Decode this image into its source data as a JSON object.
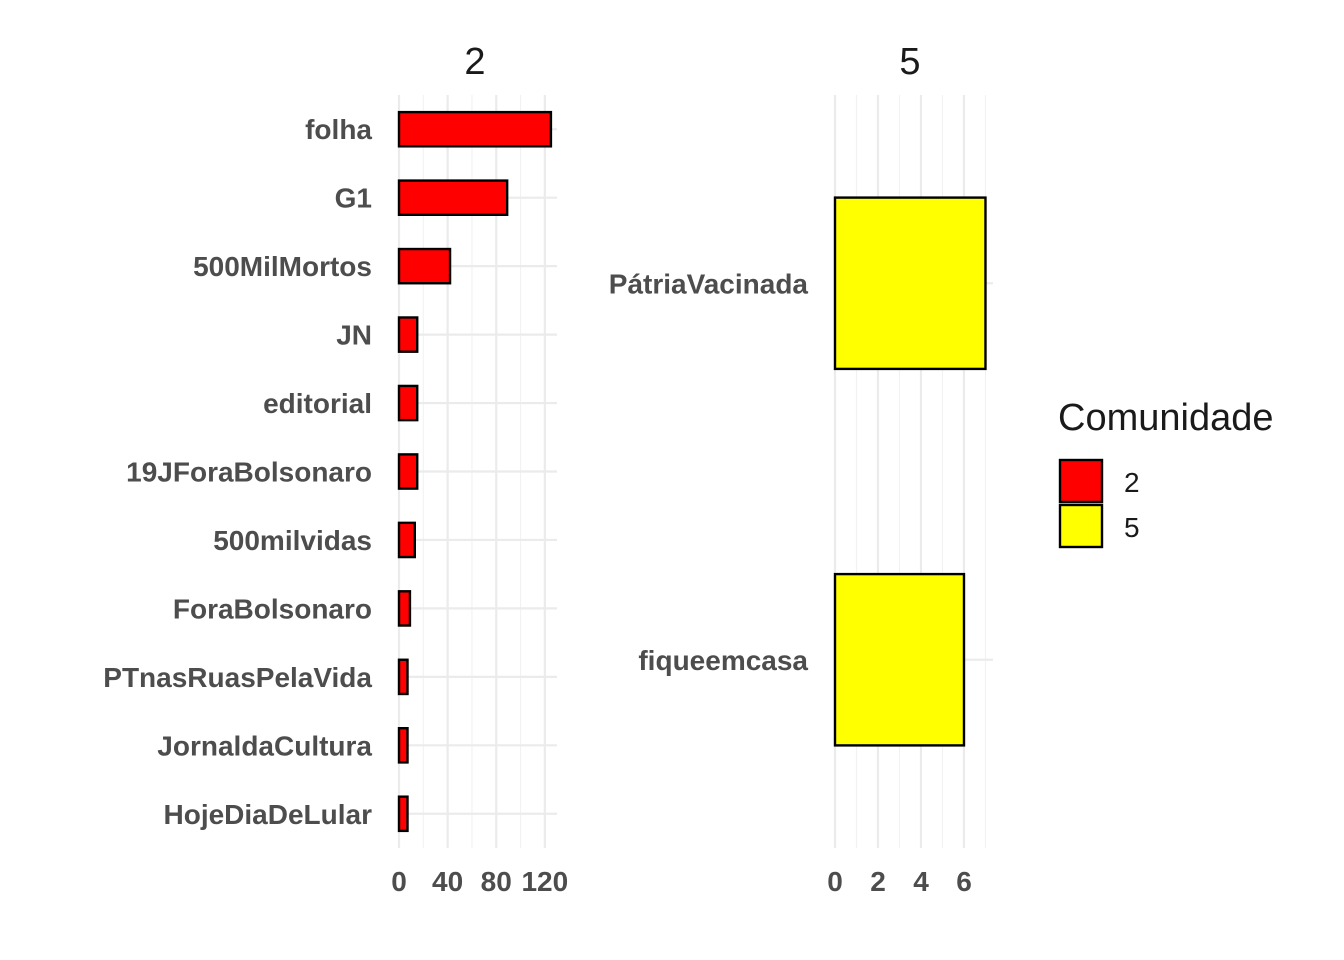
{
  "chart_data": {
    "type": "bar",
    "orientation": "horizontal",
    "facets": [
      {
        "title": "2",
        "fill": "#FF0000",
        "categories": [
          "folha",
          "G1",
          "500MilMortos",
          "JN",
          "editorial",
          "19JForaBolsonaro",
          "500milvidas",
          "ForaBolsonaro",
          "PTnasRuasPelaVida",
          "JornaldaCultura",
          "HojeDiaDeLular"
        ],
        "values": [
          125,
          89,
          42,
          15,
          15,
          15,
          13,
          9,
          7,
          7,
          7
        ],
        "xlim": [
          0,
          130
        ],
        "ticks": [
          0,
          40,
          80,
          120
        ],
        "tick_labels": [
          "0",
          "40",
          "80",
          "120"
        ]
      },
      {
        "title": "5",
        "fill": "#FFFF00",
        "categories": [
          "PátriaVacinada",
          "fiqueemcasa"
        ],
        "values": [
          7,
          6
        ],
        "xlim": [
          0,
          7.35
        ],
        "ticks": [
          0,
          2,
          4,
          6
        ],
        "tick_labels": [
          "0",
          "2",
          "4",
          "6"
        ]
      }
    ],
    "legend": {
      "title": "Comunidade",
      "placement": "right",
      "items": [
        {
          "label": "2",
          "color": "#FF0000"
        },
        {
          "label": "5",
          "color": "#FFFF00"
        }
      ]
    },
    "grid": true,
    "xlabel": "",
    "ylabel": ""
  }
}
